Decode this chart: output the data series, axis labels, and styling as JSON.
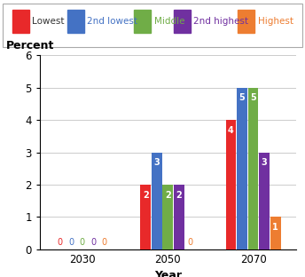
{
  "years": [
    "2030",
    "2050",
    "2070"
  ],
  "categories": [
    "Lowest",
    "2nd lowest",
    "Middle",
    "2nd highest",
    "Highest"
  ],
  "colors": [
    "#e8292a",
    "#4472c4",
    "#70ad47",
    "#7030a0",
    "#ed7d31"
  ],
  "values": {
    "Lowest": [
      0,
      2,
      4
    ],
    "2nd lowest": [
      0,
      3,
      5
    ],
    "Middle": [
      0,
      2,
      5
    ],
    "2nd highest": [
      0,
      2,
      3
    ],
    "Highest": [
      0,
      0,
      1
    ]
  },
  "ylabel": "Percent",
  "xlabel": "Year",
  "ylim": [
    0,
    6
  ],
  "yticks": [
    0,
    1,
    2,
    3,
    4,
    5,
    6
  ],
  "bar_width": 0.13,
  "group_positions": [
    0.5,
    1.5,
    2.5
  ],
  "legend_fontsize": 7.5,
  "axis_label_fontsize": 9,
  "tick_fontsize": 8.5,
  "value_fontsize": 7,
  "background_color": "#ffffff"
}
